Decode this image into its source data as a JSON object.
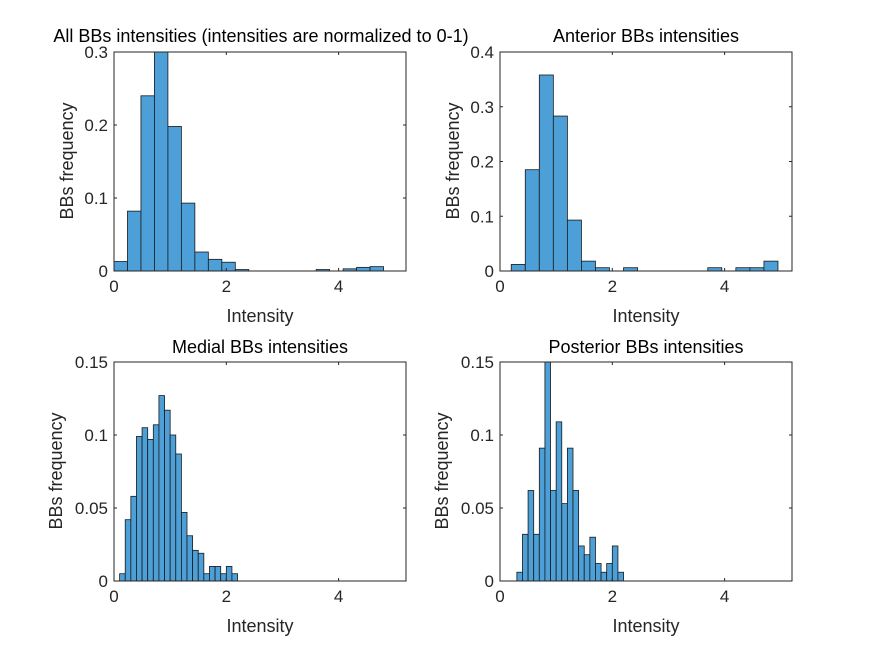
{
  "chart_data": [
    {
      "type": "bar",
      "title": "All BBs intensities (intensities are normalized to 0-1)",
      "xlabel": "Intensity",
      "ylabel": "BBs frequency",
      "xlim": [
        0,
        5.2
      ],
      "ylim": [
        0,
        0.3
      ],
      "xticks": [
        0,
        2,
        4
      ],
      "yticks": [
        0,
        0.1,
        0.2,
        0.3
      ],
      "ytick_labels": [
        "0",
        "0.1",
        "0.2",
        "0.3"
      ],
      "bin_start": 0,
      "bin_width": 0.24,
      "values": [
        0.013,
        0.082,
        0.24,
        0.302,
        0.198,
        0.093,
        0.026,
        0.016,
        0.012,
        0.002,
        0,
        0,
        0,
        0,
        0,
        0.002,
        0,
        0.003,
        0.005,
        0.006
      ]
    },
    {
      "type": "bar",
      "title": "Anterior BBs intensities",
      "xlabel": "Intensity",
      "ylabel": "BBs frequency",
      "xlim": [
        0,
        5.2
      ],
      "ylim": [
        0,
        0.4
      ],
      "xticks": [
        0,
        2,
        4
      ],
      "yticks": [
        0,
        0.1,
        0.2,
        0.3,
        0.4
      ],
      "ytick_labels": [
        "0",
        "0.1",
        "0.2",
        "0.3",
        "0.4"
      ],
      "bin_start": 0.2,
      "bin_width": 0.25,
      "values": [
        0.012,
        0.185,
        0.358,
        0.283,
        0.093,
        0.018,
        0.006,
        0,
        0.006,
        0,
        0,
        0,
        0,
        0,
        0.006,
        0,
        0.006,
        0.006,
        0.018
      ]
    },
    {
      "type": "bar",
      "title": "Medial BBs intensities",
      "xlabel": "Intensity",
      "ylabel": "BBs frequency",
      "xlim": [
        0,
        5.2
      ],
      "ylim": [
        0,
        0.15
      ],
      "xticks": [
        0,
        2,
        4
      ],
      "yticks": [
        0,
        0.05,
        0.1,
        0.15
      ],
      "ytick_labels": [
        "0",
        "0.05",
        "0.1",
        "0.15"
      ],
      "bin_start": 0.1,
      "bin_width": 0.1,
      "values": [
        0.005,
        0.042,
        0.058,
        0.099,
        0.105,
        0.097,
        0.107,
        0.127,
        0.117,
        0.1,
        0.087,
        0.047,
        0.031,
        0.021,
        0.019,
        0.005,
        0.01,
        0.01,
        0.005,
        0.01,
        0.005
      ]
    },
    {
      "type": "bar",
      "title": "Posterior BBs intensities",
      "xlabel": "Intensity",
      "ylabel": "BBs frequency",
      "xlim": [
        0,
        5.2
      ],
      "ylim": [
        0,
        0.15
      ],
      "xticks": [
        0,
        2,
        4
      ],
      "yticks": [
        0,
        0.05,
        0.1,
        0.15
      ],
      "ytick_labels": [
        "0",
        "0.05",
        "0.1",
        "0.15"
      ],
      "bin_start": 0.3,
      "bin_width": 0.1,
      "values": [
        0.006,
        0.032,
        0.062,
        0.032,
        0.091,
        0.15,
        0.062,
        0.109,
        0.053,
        0.091,
        0.062,
        0.024,
        0.018,
        0.03,
        0.012,
        0.006,
        0.012,
        0.024,
        0.006
      ]
    }
  ]
}
